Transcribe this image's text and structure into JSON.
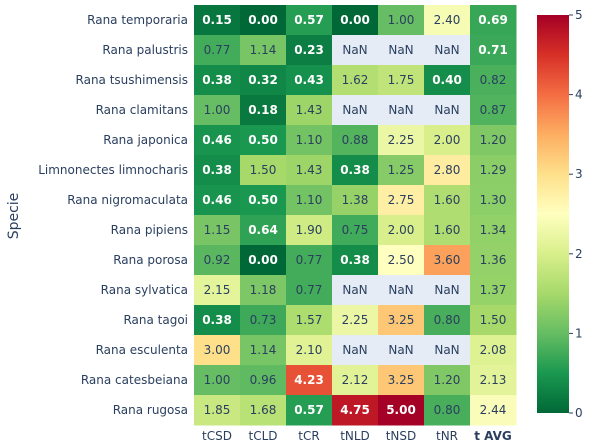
{
  "chart_data": {
    "type": "heatmap",
    "ylabel": "Specie",
    "x": [
      "tCSD",
      "tCLD",
      "tCR",
      "tNLD",
      "tNSD",
      "tNR",
      "t AVG"
    ],
    "y": [
      "Rana temporaria",
      "Rana palustris",
      "Rana tsushimensis",
      "Rana clamitans",
      "Rana japonica",
      "Limnonectes limnocharis",
      "Rana nigromaculata",
      "Rana pipiens",
      "Rana porosa",
      "Rana sylvatica",
      "Rana tagoi",
      "Rana esculenta",
      "Rana catesbeiana",
      "Rana rugosa"
    ],
    "z": [
      [
        0.15,
        0.0,
        0.57,
        0.0,
        1.0,
        2.4,
        0.69
      ],
      [
        0.77,
        1.14,
        0.23,
        null,
        null,
        null,
        0.71
      ],
      [
        0.38,
        0.32,
        0.43,
        1.62,
        1.75,
        0.4,
        0.82
      ],
      [
        1.0,
        0.18,
        1.43,
        null,
        null,
        null,
        0.87
      ],
      [
        0.46,
        0.5,
        1.1,
        0.88,
        2.25,
        2.0,
        1.2
      ],
      [
        0.38,
        1.5,
        1.43,
        0.38,
        1.25,
        2.8,
        1.29
      ],
      [
        0.46,
        0.5,
        1.1,
        1.38,
        2.75,
        1.6,
        1.3
      ],
      [
        1.15,
        0.64,
        1.9,
        0.75,
        2.0,
        1.6,
        1.34
      ],
      [
        0.92,
        0.0,
        0.77,
        0.38,
        2.5,
        3.6,
        1.36
      ],
      [
        2.15,
        1.18,
        0.77,
        null,
        null,
        null,
        1.37
      ],
      [
        0.38,
        0.73,
        1.57,
        2.25,
        3.25,
        0.8,
        1.5
      ],
      [
        3.0,
        1.14,
        2.1,
        null,
        null,
        null,
        2.08
      ],
      [
        1.0,
        0.96,
        4.23,
        2.12,
        3.25,
        1.2,
        2.13
      ],
      [
        1.85,
        1.68,
        0.57,
        4.75,
        5.0,
        0.8,
        2.44
      ]
    ],
    "text": [
      [
        "0.15",
        "0.00",
        "0.57",
        "0.00",
        "1.00",
        "2.40",
        "0.69"
      ],
      [
        "0.77",
        "1.14",
        "0.23",
        "NaN",
        "NaN",
        "NaN",
        "0.71"
      ],
      [
        "0.38",
        "0.32",
        "0.43",
        "1.62",
        "1.75",
        "0.40",
        "0.82"
      ],
      [
        "1.00",
        "0.18",
        "1.43",
        "NaN",
        "NaN",
        "NaN",
        "0.87"
      ],
      [
        "0.46",
        "0.50",
        "1.10",
        "0.88",
        "2.25",
        "2.00",
        "1.20"
      ],
      [
        "0.38",
        "1.50",
        "1.43",
        "0.38",
        "1.25",
        "2.80",
        "1.29"
      ],
      [
        "0.46",
        "0.50",
        "1.10",
        "1.38",
        "2.75",
        "1.60",
        "1.30"
      ],
      [
        "1.15",
        "0.64",
        "1.90",
        "0.75",
        "2.00",
        "1.60",
        "1.34"
      ],
      [
        "0.92",
        "0.00",
        "0.77",
        "0.38",
        "2.50",
        "3.60",
        "1.36"
      ],
      [
        "2.15",
        "1.18",
        "0.77",
        "NaN",
        "NaN",
        "NaN",
        "1.37"
      ],
      [
        "0.38",
        "0.73",
        "1.57",
        "2.25",
        "3.25",
        "0.80",
        "1.50"
      ],
      [
        "3.00",
        "1.14",
        "2.10",
        "NaN",
        "NaN",
        "NaN",
        "2.08"
      ],
      [
        "1.00",
        "0.96",
        "4.23",
        "2.12",
        "3.25",
        "1.20",
        "2.13"
      ],
      [
        "1.85",
        "1.68",
        "0.57",
        "4.75",
        "5.00",
        "0.80",
        "2.44"
      ]
    ],
    "bold_x_labels": [
      "t AVG"
    ],
    "zlim": [
      0,
      5
    ],
    "colorbar_ticks": [
      0,
      1,
      2,
      3,
      4,
      5
    ],
    "colorscale": "RdYlGn (reversed): 0 = dark green, 2.5 = pale yellow, 5 = dark red",
    "nan_color": "#e5ecf6",
    "legend_position": "right"
  }
}
